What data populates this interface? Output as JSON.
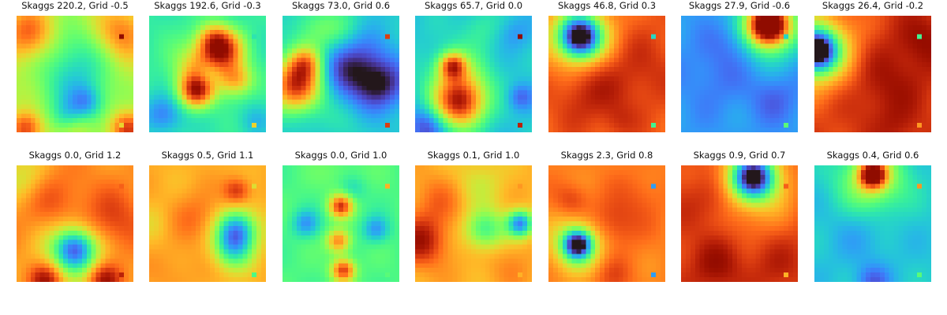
{
  "chart_data": {
    "type": "heatmap",
    "colormap": "turbo",
    "grid": false,
    "axes_visible": false,
    "layout": {
      "rows": 2,
      "cols": 7
    },
    "panels": [
      {
        "title": "Skaggs 220.2, Grid -0.5",
        "skaggs": 220.2,
        "grid": -0.5,
        "blobs": [
          [
            0.5,
            0.62,
            0.22,
            -0.22
          ],
          [
            0.45,
            0.88,
            0.1,
            -0.2
          ],
          [
            0.6,
            0.75,
            0.1,
            -0.2
          ],
          [
            0.5,
            0.3,
            0.2,
            -0.12
          ],
          [
            0.5,
            0.92,
            0.1,
            0.15
          ],
          [
            0.1,
            0.15,
            0.15,
            0.25
          ],
          [
            0.9,
            0.15,
            0.15,
            0.22
          ],
          [
            0.08,
            0.97,
            0.1,
            0.3
          ],
          [
            0.95,
            0.97,
            0.1,
            0.3
          ]
        ],
        "base": 0.55,
        "hot": [
          0.88,
          0.16,
          0.98
        ],
        "cold": [
          0.88,
          0.93,
          0.62
        ]
      },
      {
        "title": "Skaggs 192.6, Grid -0.3",
        "skaggs": 192.6,
        "grid": -0.3,
        "blobs": [
          [
            0.45,
            0.45,
            0.16,
            0.35
          ],
          [
            0.4,
            0.65,
            0.1,
            0.45
          ],
          [
            0.65,
            0.3,
            0.12,
            0.4
          ],
          [
            0.75,
            0.55,
            0.1,
            0.3
          ],
          [
            0.55,
            0.2,
            0.1,
            0.3
          ],
          [
            0.5,
            0.5,
            0.08,
            -0.15
          ],
          [
            0.12,
            0.85,
            0.12,
            -0.2
          ],
          [
            0.9,
            0.9,
            0.1,
            -0.1
          ]
        ],
        "base": 0.35,
        "hot": [
          0.88,
          0.16,
          0.33
        ],
        "cold": [
          0.88,
          0.93,
          0.62
        ]
      },
      {
        "title": "Skaggs 73.0, Grid 0.6",
        "skaggs": 73.0,
        "grid": 0.6,
        "blobs": [
          [
            0.12,
            0.6,
            0.16,
            0.6
          ],
          [
            0.2,
            0.4,
            0.1,
            0.3
          ],
          [
            0.6,
            0.45,
            0.2,
            -0.25
          ],
          [
            0.85,
            0.6,
            0.15,
            -0.2
          ],
          [
            0.5,
            0.1,
            0.15,
            0.12
          ],
          [
            0.25,
            0.15,
            0.15,
            0.15
          ],
          [
            0.55,
            0.9,
            0.15,
            0.05
          ]
        ],
        "base": 0.27,
        "hot": [
          0.88,
          0.16,
          0.85
        ],
        "cold": [
          0.88,
          0.93,
          0.85
        ]
      },
      {
        "title": "Skaggs 65.7, Grid 0.0",
        "skaggs": 65.7,
        "grid": 0.0,
        "blobs": [
          [
            0.38,
            0.75,
            0.15,
            0.55
          ],
          [
            0.32,
            0.43,
            0.08,
            0.45
          ],
          [
            0.38,
            0.55,
            0.2,
            0.2
          ],
          [
            0.1,
            0.95,
            0.12,
            -0.2
          ],
          [
            0.9,
            0.7,
            0.08,
            -0.15
          ],
          [
            0.85,
            0.15,
            0.1,
            -0.08
          ],
          [
            0.55,
            0.1,
            0.12,
            0.08
          ]
        ],
        "base": 0.27,
        "hot": [
          0.88,
          0.16,
          0.98
        ],
        "cold": [
          0.88,
          0.93,
          0.9
        ]
      },
      {
        "title": "Skaggs 46.8, Grid 0.3",
        "skaggs": 46.8,
        "grid": 0.3,
        "blobs": [
          [
            0.27,
            0.18,
            0.12,
            -0.7
          ],
          [
            0.27,
            0.18,
            0.22,
            -0.25
          ],
          [
            0.75,
            0.45,
            0.25,
            0.08
          ],
          [
            0.35,
            0.65,
            0.2,
            0.1
          ],
          [
            0.6,
            0.9,
            0.1,
            0.05
          ]
        ],
        "base": 0.8,
        "hot": [
          0.88,
          0.16,
          0.3
        ],
        "cold": [
          0.88,
          0.93,
          0.38
        ]
      },
      {
        "title": "Skaggs 27.9, Grid -0.6",
        "skaggs": 27.9,
        "grid": -0.6,
        "blobs": [
          [
            0.75,
            0.08,
            0.12,
            0.8
          ],
          [
            0.75,
            0.08,
            0.22,
            0.25
          ],
          [
            0.45,
            0.2,
            0.15,
            -0.08
          ],
          [
            0.3,
            0.5,
            0.2,
            -0.06
          ],
          [
            0.8,
            0.7,
            0.15,
            -0.08
          ]
        ],
        "base": 0.2,
        "hot": [
          0.88,
          0.16,
          0.3
        ],
        "cold": [
          0.88,
          0.93,
          0.42
        ]
      },
      {
        "title": "Skaggs 26.4, Grid -0.2",
        "skaggs": 26.4,
        "grid": -0.2,
        "blobs": [
          [
            0.02,
            0.3,
            0.12,
            -0.7
          ],
          [
            0.02,
            0.3,
            0.25,
            -0.35
          ],
          [
            0.6,
            0.55,
            0.25,
            0.1
          ],
          [
            0.95,
            0.2,
            0.15,
            0.1
          ],
          [
            0.7,
            0.95,
            0.12,
            0.05
          ]
        ],
        "base": 0.85,
        "hot": [
          0.88,
          0.16,
          0.38
        ],
        "cold": [
          0.88,
          0.93,
          0.72
        ]
      },
      {
        "title": "Skaggs 0.0, Grid 1.2",
        "skaggs": 0.0,
        "grid": 1.2,
        "blobs": [
          [
            0.5,
            0.72,
            0.12,
            -0.45
          ],
          [
            0.5,
            0.75,
            0.22,
            -0.2
          ],
          [
            0.25,
            0.98,
            0.1,
            0.25
          ],
          [
            0.75,
            0.98,
            0.1,
            0.25
          ],
          [
            0.3,
            0.3,
            0.2,
            0.1
          ],
          [
            0.8,
            0.5,
            0.2,
            0.15
          ],
          [
            0.05,
            0.1,
            0.15,
            -0.15
          ]
        ],
        "base": 0.72,
        "hot": [
          0.88,
          0.16,
          0.8
        ],
        "cold": [
          0.88,
          0.93,
          0.9
        ]
      },
      {
        "title": "Skaggs 0.5, Grid 1.1",
        "skaggs": 0.5,
        "grid": 1.1,
        "blobs": [
          [
            0.75,
            0.55,
            0.12,
            -0.45
          ],
          [
            0.72,
            0.72,
            0.12,
            -0.3
          ],
          [
            0.75,
            0.22,
            0.08,
            0.2
          ],
          [
            0.4,
            0.45,
            0.15,
            0.1
          ],
          [
            0.05,
            0.5,
            0.12,
            -0.05
          ],
          [
            0.2,
            0.9,
            0.15,
            0.05
          ]
        ],
        "base": 0.68,
        "hot": [
          0.88,
          0.16,
          0.6
        ],
        "cold": [
          0.88,
          0.93,
          0.4
        ]
      },
      {
        "title": "Skaggs 0.0, Grid 1.0",
        "skaggs": 0.0,
        "grid": 1.0,
        "blobs": [
          [
            0.5,
            0.35,
            0.07,
            0.45
          ],
          [
            0.48,
            0.65,
            0.07,
            0.35
          ],
          [
            0.52,
            0.9,
            0.07,
            0.45
          ],
          [
            0.2,
            0.5,
            0.08,
            -0.2
          ],
          [
            0.8,
            0.55,
            0.08,
            -0.2
          ],
          [
            0.6,
            0.2,
            0.08,
            -0.1
          ],
          [
            0.5,
            0.05,
            0.15,
            0.05
          ]
        ],
        "base": 0.4,
        "hot": [
          0.88,
          0.16,
          0.68
        ],
        "cold": [
          0.88,
          0.93,
          0.42
        ]
      },
      {
        "title": "Skaggs 0.1, Grid 1.0",
        "skaggs": 0.1,
        "grid": 1.0,
        "blobs": [
          [
            0.9,
            0.5,
            0.08,
            -0.5
          ],
          [
            0.6,
            0.55,
            0.12,
            -0.3
          ],
          [
            0.05,
            0.65,
            0.15,
            0.25
          ],
          [
            0.2,
            0.3,
            0.15,
            0.1
          ],
          [
            0.55,
            0.15,
            0.15,
            -0.1
          ],
          [
            0.8,
            0.85,
            0.15,
            0.05
          ]
        ],
        "base": 0.68,
        "hot": [
          0.88,
          0.16,
          0.72
        ],
        "cold": [
          0.88,
          0.93,
          0.68
        ]
      },
      {
        "title": "Skaggs 2.3, Grid 0.8",
        "skaggs": 2.3,
        "grid": 0.8,
        "blobs": [
          [
            0.25,
            0.68,
            0.08,
            -0.6
          ],
          [
            0.25,
            0.68,
            0.16,
            -0.3
          ],
          [
            0.55,
            0.5,
            0.15,
            0.12
          ],
          [
            0.55,
            0.95,
            0.12,
            0.08
          ],
          [
            0.2,
            0.3,
            0.1,
            0.1
          ],
          [
            0.8,
            0.25,
            0.15,
            0.05
          ]
        ],
        "base": 0.75,
        "hot": [
          0.88,
          0.16,
          0.2
        ],
        "cold": [
          0.88,
          0.93,
          0.2
        ]
      },
      {
        "title": "Skaggs 0.9, Grid 0.7",
        "skaggs": 0.9,
        "grid": 0.7,
        "blobs": [
          [
            0.62,
            0.1,
            0.12,
            -0.65
          ],
          [
            0.62,
            0.15,
            0.25,
            -0.3
          ],
          [
            0.3,
            0.3,
            0.15,
            0.1
          ],
          [
            0.3,
            0.85,
            0.15,
            0.1
          ],
          [
            0.8,
            0.85,
            0.15,
            0.05
          ]
        ],
        "base": 0.85,
        "hot": [
          0.88,
          0.16,
          0.8
        ],
        "cold": [
          0.88,
          0.93,
          0.68
        ]
      },
      {
        "title": "Skaggs 0.4, Grid 0.6",
        "skaggs": 0.4,
        "grid": 0.6,
        "blobs": [
          [
            0.5,
            0.08,
            0.08,
            0.6
          ],
          [
            0.5,
            0.12,
            0.2,
            0.3
          ],
          [
            0.4,
            0.6,
            0.2,
            -0.05
          ],
          [
            0.5,
            1.0,
            0.1,
            -0.15
          ]
        ],
        "base": 0.27,
        "hot": [
          0.88,
          0.16,
          0.72
        ],
        "cold": [
          0.88,
          0.93,
          0.42
        ]
      }
    ]
  }
}
